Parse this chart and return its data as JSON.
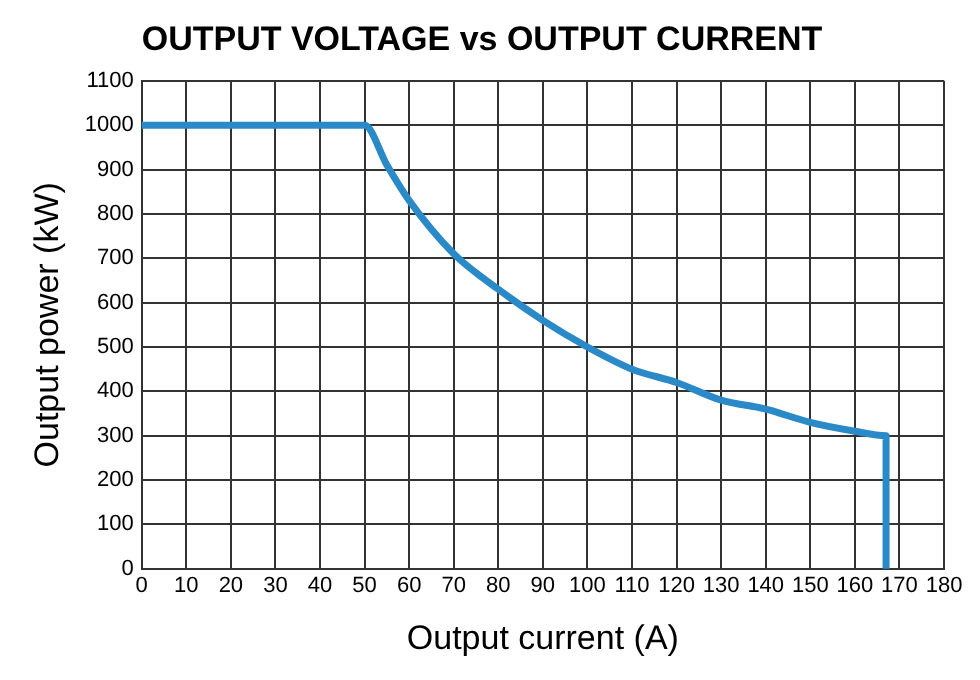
{
  "chart_data": {
    "type": "line",
    "title": "OUTPUT VOLTAGE vs OUTPUT CURRENT",
    "xlabel": "Output current (A)",
    "ylabel": "Output power (kW)",
    "x": [
      0,
      50,
      55,
      60,
      70,
      80,
      90,
      100,
      110,
      120,
      130,
      140,
      150,
      160,
      167,
      167
    ],
    "series": [
      {
        "color": "#2a8ac8",
        "values": [
          1000,
          1000,
          910,
          830,
          710,
          630,
          560,
          500,
          450,
          420,
          380,
          360,
          330,
          310,
          300,
          0
        ]
      }
    ],
    "xlim": [
      0,
      180
    ],
    "xticks": [
      0,
      10,
      20,
      30,
      40,
      50,
      60,
      70,
      80,
      90,
      100,
      110,
      120,
      130,
      140,
      150,
      160,
      170,
      180
    ],
    "ylim": [
      0,
      1100
    ],
    "yticks": [
      0,
      100,
      200,
      300,
      400,
      500,
      600,
      700,
      800,
      900,
      1000,
      1100
    ],
    "grid": true,
    "legend": false,
    "marker": "none",
    "line_style": "solid"
  }
}
